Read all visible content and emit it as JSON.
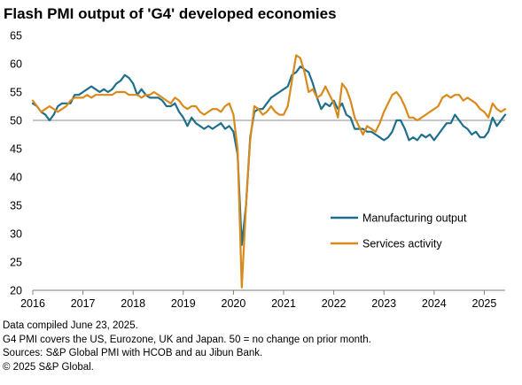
{
  "title": "Flash PMI output of 'G4' developed economies",
  "footer": {
    "line1": "Data compiled June 23, 2025.",
    "line2": "G4 PMI covers the US, Eurozone, UK and Japan. 50 = no change on prior month.",
    "line3": "Sources: S&P Global PMI with HCOB and au Jibun Bank.",
    "line4": "© 2025 S&P Global."
  },
  "chart_data": {
    "type": "line",
    "title": "Flash PMI output of 'G4' developed economies",
    "xlabel": "",
    "ylabel": "",
    "xlim": [
      "2016-01",
      "2025-06"
    ],
    "ylim": [
      20,
      65
    ],
    "yticks": [
      20,
      25,
      30,
      35,
      40,
      45,
      50,
      55,
      60,
      65
    ],
    "xticks": [
      "2016",
      "2017",
      "2018",
      "2019",
      "2020",
      "2021",
      "2022",
      "2023",
      "2024",
      "2025"
    ],
    "reference_line": 50,
    "grid": false,
    "legend_position": "lower-right",
    "x_start": "2016-01",
    "x_frequency": "monthly",
    "series": [
      {
        "name": "Manufacturing output",
        "color": "#1f6f8b",
        "values": [
          53.0,
          52.5,
          51.5,
          51.0,
          50.0,
          51.0,
          52.5,
          53.0,
          53.0,
          53.0,
          54.5,
          54.5,
          55.0,
          55.5,
          56.0,
          55.5,
          55.0,
          55.5,
          55.0,
          55.5,
          56.5,
          57.0,
          58.0,
          57.5,
          56.5,
          54.5,
          55.5,
          54.5,
          54.0,
          54.0,
          54.0,
          53.5,
          52.5,
          52.5,
          53.0,
          51.5,
          50.5,
          49.0,
          50.5,
          49.5,
          49.0,
          48.5,
          49.0,
          48.5,
          49.0,
          49.5,
          48.5,
          49.0,
          48.0,
          44.0,
          28.0,
          35.0,
          47.0,
          51.5,
          52.0,
          52.0,
          53.0,
          54.0,
          54.5,
          55.0,
          55.5,
          56.0,
          58.0,
          58.5,
          59.5,
          59.0,
          58.5,
          56.5,
          54.0,
          52.0,
          53.0,
          52.5,
          53.5,
          52.0,
          53.0,
          51.0,
          50.5,
          48.5,
          48.5,
          48.5,
          48.0,
          48.0,
          47.5,
          47.0,
          46.5,
          47.0,
          48.0,
          50.0,
          50.0,
          48.5,
          46.5,
          47.0,
          46.5,
          47.5,
          47.0,
          47.5,
          46.5,
          47.5,
          48.5,
          49.5,
          49.5,
          51.0,
          50.0,
          49.0,
          48.5,
          47.5,
          48.0,
          47.0,
          47.0,
          48.0,
          50.5,
          49.0,
          50.0,
          51.0
        ]
      },
      {
        "name": "Services activity",
        "color": "#d98a1a",
        "values": [
          53.5,
          52.5,
          51.5,
          52.0,
          52.5,
          52.0,
          51.5,
          52.0,
          52.5,
          53.5,
          54.0,
          54.0,
          54.0,
          54.5,
          54.0,
          54.5,
          54.5,
          54.5,
          54.5,
          54.5,
          55.0,
          55.0,
          55.0,
          54.5,
          54.5,
          54.5,
          54.0,
          54.5,
          54.5,
          55.0,
          54.5,
          54.0,
          53.5,
          53.0,
          54.0,
          53.5,
          52.5,
          52.0,
          52.5,
          52.5,
          51.5,
          51.0,
          51.5,
          52.0,
          52.0,
          51.5,
          52.5,
          53.0,
          51.0,
          45.0,
          20.5,
          35.0,
          46.5,
          52.5,
          52.0,
          51.0,
          51.5,
          52.5,
          51.5,
          51.0,
          51.0,
          52.5,
          57.0,
          61.5,
          61.0,
          58.5,
          55.0,
          55.5,
          54.0,
          54.5,
          56.0,
          54.5,
          53.0,
          50.5,
          56.5,
          55.5,
          53.5,
          50.5,
          49.0,
          47.5,
          49.0,
          48.5,
          48.0,
          49.5,
          51.5,
          53.0,
          54.5,
          55.0,
          54.0,
          52.5,
          50.5,
          50.5,
          50.0,
          50.5,
          51.0,
          51.5,
          52.0,
          52.5,
          54.0,
          54.5,
          54.0,
          54.5,
          54.5,
          53.5,
          54.0,
          53.5,
          53.0,
          52.0,
          51.5,
          50.5,
          53.0,
          52.0,
          51.5,
          52.0
        ]
      }
    ]
  }
}
